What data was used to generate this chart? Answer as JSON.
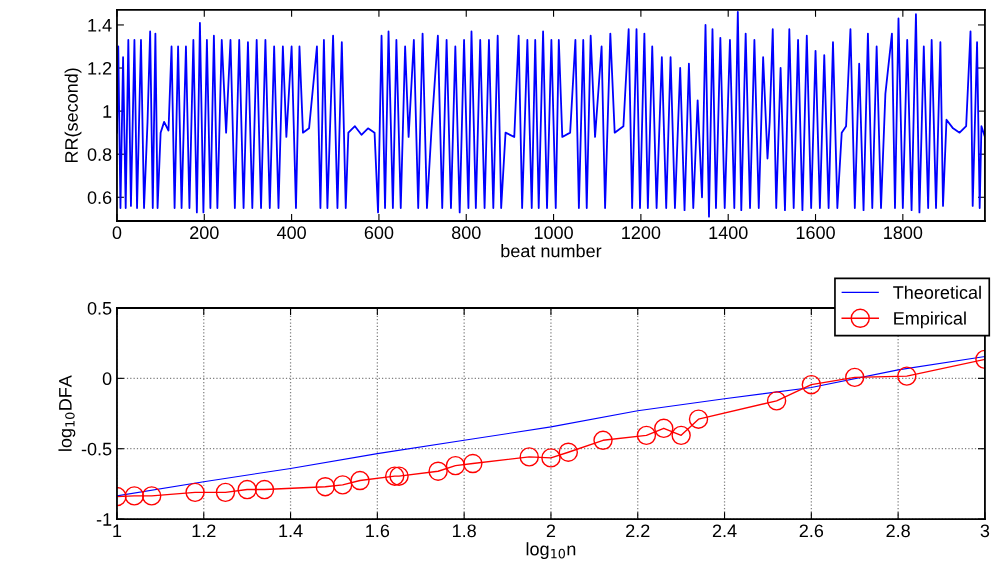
{
  "chart_data": [
    {
      "type": "line",
      "xlabel": "beat number",
      "ylabel": "RR(second)",
      "xlim": [
        0,
        1988
      ],
      "ylim": [
        0.49,
        1.47
      ],
      "xticks": [
        0,
        200,
        400,
        600,
        800,
        1000,
        1200,
        1400,
        1600,
        1800
      ],
      "yticks": [
        0.6,
        0.8,
        1,
        1.2,
        1.4
      ],
      "grid": false,
      "legend": false,
      "marker": "none",
      "line_style": "solid",
      "series": [
        {
          "color": "#0000ff",
          "x": [
            0,
            3,
            8,
            14,
            20,
            26,
            32,
            40,
            46,
            55,
            62,
            70,
            76,
            82,
            88,
            93,
            100,
            108,
            118,
            125,
            132,
            140,
            148,
            158,
            166,
            175,
            183,
            190,
            198,
            206,
            214,
            222,
            230,
            240,
            250,
            260,
            270,
            280,
            290,
            300,
            310,
            320,
            330,
            340,
            350,
            360,
            370,
            380,
            388,
            400,
            410,
            418,
            426,
            440,
            458,
            466,
            474,
            482,
            495,
            505,
            515,
            524,
            530,
            545,
            560,
            575,
            590,
            598,
            606,
            614,
            622,
            632,
            640,
            650,
            660,
            668,
            680,
            690,
            700,
            710,
            720,
            735,
            745,
            755,
            765,
            775,
            785,
            795,
            805,
            812,
            822,
            832,
            842,
            852,
            862,
            872,
            880,
            890,
            910,
            920,
            928,
            940,
            950,
            958,
            966,
            976,
            985,
            995,
            1005,
            1012,
            1020,
            1038,
            1050,
            1058,
            1068,
            1076,
            1085,
            1095,
            1110,
            1118,
            1130,
            1140,
            1160,
            1172,
            1180,
            1190,
            1198,
            1208,
            1216,
            1226,
            1236,
            1248,
            1258,
            1268,
            1278,
            1290,
            1300,
            1310,
            1320,
            1330,
            1340,
            1348,
            1356,
            1364,
            1372,
            1382,
            1392,
            1404,
            1414,
            1422,
            1430,
            1440,
            1450,
            1460,
            1470,
            1480,
            1490,
            1495,
            1502,
            1510,
            1520,
            1530,
            1540,
            1550,
            1560,
            1570,
            1580,
            1590,
            1600,
            1610,
            1620,
            1630,
            1640,
            1650,
            1660,
            1670,
            1680,
            1690,
            1700,
            1710,
            1720,
            1730,
            1740,
            1750,
            1760,
            1775,
            1782,
            1790,
            1800,
            1810,
            1820,
            1830,
            1838,
            1848,
            1858,
            1866,
            1876,
            1886,
            1892,
            1900,
            1915,
            1930,
            1945,
            1955,
            1960,
            1970,
            1976,
            1980,
            1988
          ],
          "values": [
            0.9,
            1.3,
            0.55,
            1.25,
            0.55,
            1.33,
            0.56,
            1.33,
            0.55,
            1.33,
            0.55,
            0.95,
            1.37,
            0.55,
            1.36,
            0.55,
            0.9,
            0.95,
            0.91,
            1.3,
            0.55,
            1.3,
            0.55,
            1.3,
            0.55,
            1.33,
            0.53,
            1.41,
            0.53,
            1.33,
            0.55,
            1.35,
            0.55,
            1.33,
            0.9,
            1.33,
            0.55,
            1.33,
            0.55,
            1.32,
            0.55,
            1.33,
            0.55,
            1.33,
            0.55,
            1.3,
            0.55,
            1.3,
            0.88,
            1.3,
            0.55,
            1.3,
            0.9,
            0.92,
            1.3,
            0.55,
            1.33,
            0.55,
            1.35,
            0.55,
            1.32,
            0.55,
            0.9,
            0.93,
            0.89,
            0.92,
            0.9,
            0.53,
            1.35,
            0.55,
            1.37,
            0.55,
            1.33,
            0.55,
            1.3,
            0.88,
            1.33,
            0.55,
            1.36,
            0.55,
            0.9,
            1.35,
            0.55,
            1.33,
            0.55,
            1.3,
            0.53,
            1.33,
            0.55,
            1.37,
            0.55,
            1.33,
            0.55,
            1.33,
            0.55,
            1.35,
            0.55,
            0.9,
            0.88,
            1.35,
            0.55,
            1.33,
            0.55,
            1.33,
            0.55,
            1.37,
            0.55,
            1.33,
            0.55,
            1.33,
            0.88,
            0.9,
            1.33,
            0.55,
            1.33,
            0.55,
            1.35,
            0.88,
            1.3,
            0.55,
            1.36,
            0.9,
            0.93,
            1.38,
            0.55,
            1.38,
            0.55,
            1.36,
            0.55,
            1.3,
            0.55,
            1.25,
            0.55,
            1.25,
            0.55,
            1.2,
            0.54,
            1.22,
            0.55,
            1.05,
            0.6,
            1.4,
            0.51,
            1.38,
            0.55,
            1.34,
            0.55,
            1.33,
            0.55,
            1.46,
            0.54,
            1.36,
            0.55,
            1.33,
            0.55,
            1.25,
            0.78,
            0.95,
            1.38,
            0.55,
            1.2,
            0.54,
            1.38,
            0.55,
            1.33,
            0.54,
            1.35,
            0.55,
            1.28,
            0.55,
            1.26,
            0.55,
            1.32,
            0.55,
            0.9,
            0.93,
            1.38,
            0.55,
            1.22,
            0.54,
            1.36,
            0.55,
            1.3,
            0.55,
            1.08,
            1.36,
            0.55,
            1.43,
            0.55,
            1.33,
            0.54,
            1.45,
            0.53,
            1.3,
            0.55,
            1.33,
            0.55,
            1.32,
            0.56,
            0.96,
            0.92,
            0.9,
            0.93,
            1.37,
            0.56,
            1.32,
            0.55,
            0.93,
            0.88
          ]
        }
      ]
    },
    {
      "type": "line",
      "xlabel": "log$_{10}$n",
      "ylabel": "log$_{10}$DFA",
      "xlim": [
        1,
        3
      ],
      "ylim": [
        -1,
        0.5
      ],
      "xticks": [
        1,
        1.2,
        1.4,
        1.6,
        1.8,
        2,
        2.2,
        2.4,
        2.6,
        2.8,
        3
      ],
      "yticks": [
        -1,
        -0.5,
        0,
        0.5
      ],
      "grid": true,
      "legend": "top right",
      "line_style": "solid",
      "series": [
        {
          "name": "Theoretical",
          "color": "#0000ff",
          "marker": "none",
          "x": [
            1,
            1.2,
            1.4,
            1.6,
            1.8,
            2,
            2.2,
            2.4,
            2.6,
            2.8,
            3
          ],
          "values": [
            -0.835,
            -0.735,
            -0.64,
            -0.535,
            -0.44,
            -0.345,
            -0.23,
            -0.145,
            -0.065,
            0.06,
            0.155
          ]
        },
        {
          "name": "Empirical",
          "color": "#ff0000",
          "marker": "circle",
          "x": [
            1.0,
            1.04,
            1.08,
            1.18,
            1.25,
            1.3,
            1.34,
            1.48,
            1.52,
            1.56,
            1.64,
            1.65,
            1.74,
            1.78,
            1.82,
            1.95,
            2.0,
            2.04,
            2.12,
            2.22,
            2.26,
            2.3,
            2.34,
            2.52,
            2.6,
            2.7,
            2.82,
            3.0
          ],
          "values": [
            -0.84,
            -0.835,
            -0.835,
            -0.81,
            -0.81,
            -0.79,
            -0.79,
            -0.77,
            -0.757,
            -0.726,
            -0.695,
            -0.695,
            -0.66,
            -0.62,
            -0.605,
            -0.558,
            -0.565,
            -0.525,
            -0.44,
            -0.405,
            -0.355,
            -0.405,
            -0.29,
            -0.16,
            -0.045,
            0.007,
            0.016,
            0.135
          ]
        }
      ]
    }
  ]
}
